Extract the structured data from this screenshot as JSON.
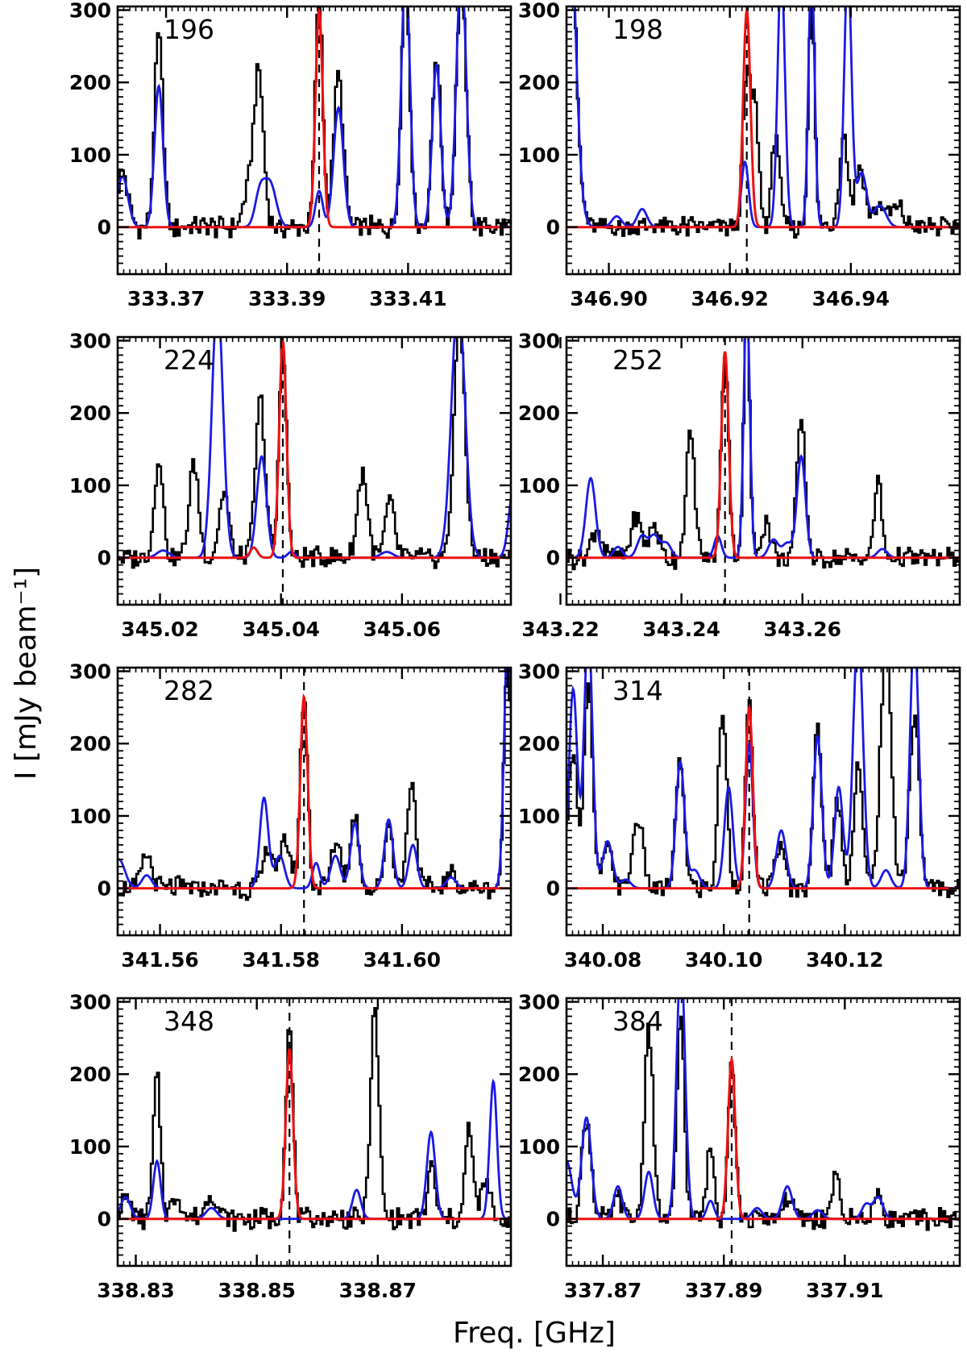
{
  "figure": {
    "xlabel": "Freq. [GHz]",
    "ylabel": "I [mJy beam⁻¹]",
    "colors": {
      "observed": "#000000",
      "model_line": "#ee1111",
      "model_total": "#1a1ae6",
      "baseline": "#ee1111"
    }
  },
  "chart_data": [
    {
      "type": "line",
      "label": "196",
      "xlim": [
        333.362,
        333.427
      ],
      "ylim": [
        -65,
        305
      ],
      "xticks": [
        333.37,
        333.39,
        333.41
      ],
      "xtick_labels": [
        "333.37",
        "333.39",
        "333.41"
      ],
      "yticks": [
        0,
        100,
        200,
        300
      ],
      "ytick_labels": [
        "0",
        "100",
        "200",
        "300"
      ],
      "marker_freq": 333.3953,
      "observed_peaks": [
        [
          333.3628,
          75,
          0.0009
        ],
        [
          333.3688,
          265,
          0.0007
        ],
        [
          333.3853,
          215,
          0.0008
        ],
        [
          333.3835,
          45,
          0.0008
        ],
        [
          333.3953,
          330,
          0.0006
        ],
        [
          333.3985,
          210,
          0.0008
        ],
        [
          333.4096,
          340,
          0.0007
        ],
        [
          333.4147,
          240,
          0.0007
        ],
        [
          333.4188,
          340,
          0.0008
        ]
      ],
      "model_line_peaks": [
        [
          333.3953,
          300,
          0.0006
        ]
      ],
      "model_total_peaks": [
        [
          333.3628,
          70,
          0.0009
        ],
        [
          333.3688,
          195,
          0.0007
        ],
        [
          333.3855,
          45,
          0.0008
        ],
        [
          333.3872,
          60,
          0.001
        ],
        [
          333.3953,
          50,
          0.0006
        ],
        [
          333.3985,
          165,
          0.0008
        ],
        [
          333.4096,
          360,
          0.0007
        ],
        [
          333.4147,
          225,
          0.0007
        ],
        [
          333.4188,
          360,
          0.0008
        ]
      ]
    },
    {
      "type": "line",
      "label": "198",
      "xlim": [
        346.893,
        346.958
      ],
      "ylim": [
        -65,
        305
      ],
      "xticks": [
        346.9,
        346.92,
        346.94
      ],
      "xtick_labels": [
        "346.90",
        "346.92",
        "346.94"
      ],
      "yticks": [
        0,
        100,
        200,
        300
      ],
      "ytick_labels": [
        "0",
        "100",
        "200",
        "300"
      ],
      "marker_freq": 346.9228,
      "observed_peaks": [
        [
          346.893,
          600,
          0.0012
        ],
        [
          346.9228,
          210,
          0.0006
        ],
        [
          346.9242,
          160,
          0.0006
        ],
        [
          346.9276,
          135,
          0.0006
        ],
        [
          346.9335,
          330,
          0.0005
        ],
        [
          346.9388,
          130,
          0.0007
        ],
        [
          346.9415,
          85,
          0.0008
        ],
        [
          346.9448,
          30,
          0.001
        ],
        [
          346.9478,
          25,
          0.001
        ]
      ],
      "model_line_peaks": [
        [
          346.9228,
          300,
          0.0006
        ]
      ],
      "model_total_peaks": [
        [
          346.893,
          600,
          0.0012
        ],
        [
          346.9013,
          15,
          0.0008
        ],
        [
          346.9055,
          25,
          0.0008
        ],
        [
          346.9225,
          90,
          0.0006
        ],
        [
          346.9285,
          360,
          0.0006
        ],
        [
          346.9335,
          360,
          0.0005
        ],
        [
          346.9395,
          360,
          0.0006
        ],
        [
          346.9418,
          75,
          0.0008
        ],
        [
          346.9448,
          30,
          0.001
        ]
      ]
    },
    {
      "type": "line",
      "label": "224",
      "xlim": [
        345.013,
        345.078
      ],
      "ylim": [
        -65,
        305
      ],
      "xticks": [
        345.02,
        345.04,
        345.06
      ],
      "xtick_labels": [
        "345.02",
        "345.04",
        "345.06"
      ],
      "yticks": [
        0,
        100,
        200,
        300
      ],
      "ytick_labels": [
        "0",
        "100",
        "200",
        "300"
      ],
      "marker_freq": 345.0403,
      "observed_peaks": [
        [
          345.0198,
          140,
          0.0007
        ],
        [
          345.0256,
          130,
          0.0008
        ],
        [
          345.0306,
          90,
          0.0008
        ],
        [
          345.0366,
          220,
          0.0008
        ],
        [
          345.0403,
          300,
          0.0006
        ],
        [
          345.0535,
          120,
          0.0008
        ],
        [
          345.058,
          75,
          0.0008
        ],
        [
          345.0695,
          330,
          0.0009
        ]
      ],
      "model_line_peaks": [
        [
          345.0403,
          300,
          0.0006
        ],
        [
          345.0355,
          14,
          0.0006
        ]
      ],
      "model_total_peaks": [
        [
          345.0103,
          80,
          0.001
        ],
        [
          345.0205,
          10,
          0.001
        ],
        [
          345.0295,
          360,
          0.0009
        ],
        [
          345.0368,
          140,
          0.0008
        ],
        [
          345.0417,
          8,
          0.0006
        ],
        [
          345.0575,
          8,
          0.001
        ],
        [
          345.0693,
          360,
          0.0011
        ],
        [
          345.0785,
          100,
          0.0008
        ]
      ]
    },
    {
      "type": "line",
      "label": "252",
      "xlim": [
        343.221,
        343.286
      ],
      "ylim": [
        -65,
        305
      ],
      "xticks": [
        343.22,
        343.24,
        343.26
      ],
      "xtick_labels": [
        "343.22",
        "343.24",
        "343.26"
      ],
      "yticks": [
        0,
        100,
        200,
        300
      ],
      "ytick_labels": [
        "0",
        "100",
        "200",
        "300"
      ],
      "marker_freq": 343.2472,
      "observed_peaks": [
        [
          343.226,
          40,
          0.0008
        ],
        [
          343.2325,
          60,
          0.0008
        ],
        [
          343.2355,
          45,
          0.0008
        ],
        [
          343.2415,
          170,
          0.0007
        ],
        [
          343.2472,
          285,
          0.0006
        ],
        [
          343.2508,
          330,
          0.0005
        ],
        [
          343.254,
          50,
          0.0008
        ],
        [
          343.2598,
          190,
          0.0007
        ],
        [
          343.2725,
          110,
          0.0006
        ]
      ],
      "model_line_peaks": [
        [
          343.2472,
          285,
          0.0006
        ]
      ],
      "model_total_peaks": [
        [
          343.225,
          110,
          0.0008
        ],
        [
          343.2295,
          15,
          0.0007
        ],
        [
          343.2335,
          30,
          0.0008
        ],
        [
          343.2355,
          30,
          0.0008
        ],
        [
          343.2375,
          20,
          0.0008
        ],
        [
          343.246,
          30,
          0.0006
        ],
        [
          343.2508,
          360,
          0.0005
        ],
        [
          343.2552,
          25,
          0.0008
        ],
        [
          343.2575,
          20,
          0.0008
        ],
        [
          343.2598,
          140,
          0.0007
        ],
        [
          343.2732,
          12,
          0.0008
        ]
      ]
    },
    {
      "type": "line",
      "label": "282",
      "xlim": [
        341.553,
        341.618
      ],
      "ylim": [
        -65,
        305
      ],
      "xticks": [
        341.56,
        341.58,
        341.6
      ],
      "xtick_labels": [
        "341.56",
        "341.58",
        "341.60"
      ],
      "yticks": [
        0,
        100,
        200,
        300
      ],
      "ytick_labels": [
        "0",
        "100",
        "200",
        "300"
      ],
      "marker_freq": 341.5838,
      "observed_peaks": [
        [
          341.5578,
          45,
          0.0008
        ],
        [
          341.578,
          60,
          0.0008
        ],
        [
          341.5808,
          65,
          0.0008
        ],
        [
          341.5838,
          265,
          0.0006
        ],
        [
          341.5892,
          65,
          0.0008
        ],
        [
          341.5922,
          100,
          0.0007
        ],
        [
          341.5978,
          90,
          0.0007
        ],
        [
          341.6016,
          155,
          0.0007
        ],
        [
          341.6081,
          20,
          0.0008
        ],
        [
          341.6175,
          320,
          0.0006
        ]
      ],
      "model_line_peaks": [
        [
          341.5838,
          265,
          0.0006
        ]
      ],
      "model_total_peaks": [
        [
          341.5532,
          40,
          0.001
        ],
        [
          341.5578,
          18,
          0.0008
        ],
        [
          341.5772,
          125,
          0.0007
        ],
        [
          341.5798,
          45,
          0.0008
        ],
        [
          341.5858,
          35,
          0.0006
        ],
        [
          341.589,
          45,
          0.0008
        ],
        [
          341.5922,
          90,
          0.0007
        ],
        [
          341.5978,
          95,
          0.0007
        ],
        [
          341.6018,
          60,
          0.0007
        ],
        [
          341.6081,
          15,
          0.0008
        ],
        [
          341.6175,
          360,
          0.0006
        ]
      ]
    },
    {
      "type": "line",
      "label": "314",
      "xlim": [
        340.074,
        340.139
      ],
      "ylim": [
        -65,
        305
      ],
      "xticks": [
        340.08,
        340.1,
        340.12
      ],
      "xtick_labels": [
        "340.08",
        "340.10",
        "340.12"
      ],
      "yticks": [
        0,
        100,
        200,
        300
      ],
      "ytick_labels": [
        "0",
        "100",
        "200",
        "300"
      ],
      "marker_freq": 340.1042,
      "observed_peaks": [
        [
          340.0751,
          200,
          0.0007
        ],
        [
          340.0776,
          280,
          0.0007
        ],
        [
          340.0808,
          55,
          0.0008
        ],
        [
          340.0858,
          100,
          0.0008
        ],
        [
          340.0928,
          175,
          0.0007
        ],
        [
          340.0998,
          245,
          0.0007
        ],
        [
          340.1042,
          250,
          0.0006
        ],
        [
          340.1092,
          60,
          0.0008
        ],
        [
          340.1155,
          220,
          0.0007
        ],
        [
          340.1188,
          120,
          0.0007
        ],
        [
          340.1222,
          175,
          0.0007
        ],
        [
          340.1268,
          330,
          0.0009
        ],
        [
          340.1315,
          240,
          0.0008
        ]
      ],
      "model_line_peaks": [
        [
          340.1042,
          250,
          0.0006
        ]
      ],
      "model_total_peaks": [
        [
          340.0751,
          275,
          0.0007
        ],
        [
          340.0776,
          360,
          0.0007
        ],
        [
          340.0808,
          65,
          0.0008
        ],
        [
          340.0838,
          12,
          0.0008
        ],
        [
          340.0928,
          175,
          0.0007
        ],
        [
          340.0952,
          25,
          0.0008
        ],
        [
          340.1008,
          140,
          0.0007
        ],
        [
          340.1042,
          200,
          0.0006
        ],
        [
          340.1095,
          80,
          0.0008
        ],
        [
          340.1155,
          210,
          0.0007
        ],
        [
          340.119,
          140,
          0.0007
        ],
        [
          340.1222,
          360,
          0.0008
        ],
        [
          340.1268,
          25,
          0.0008
        ],
        [
          340.1315,
          360,
          0.0007
        ]
      ]
    },
    {
      "type": "line",
      "label": "348",
      "xlim": [
        338.827,
        338.892
      ],
      "ylim": [
        -65,
        305
      ],
      "xticks": [
        338.83,
        338.85,
        338.87
      ],
      "xtick_labels": [
        "338.83",
        "338.85",
        "338.87"
      ],
      "yticks": [
        0,
        100,
        200,
        300
      ],
      "ytick_labels": [
        "0",
        "100",
        "200",
        "300"
      ],
      "marker_freq": 338.8554,
      "observed_peaks": [
        [
          338.8283,
          30,
          0.0008
        ],
        [
          338.8335,
          195,
          0.0006
        ],
        [
          338.8368,
          35,
          0.0008
        ],
        [
          338.8425,
          35,
          0.0009
        ],
        [
          338.8554,
          265,
          0.0006
        ],
        [
          338.8695,
          285,
          0.0007
        ],
        [
          338.8789,
          75,
          0.0006
        ],
        [
          338.8851,
          130,
          0.0006
        ],
        [
          338.8878,
          50,
          0.0008
        ]
      ],
      "model_line_peaks": [
        [
          338.8554,
          235,
          0.0006
        ]
      ],
      "model_total_peaks": [
        [
          338.8283,
          30,
          0.0008
        ],
        [
          338.8335,
          80,
          0.0006
        ],
        [
          338.8425,
          15,
          0.0009
        ],
        [
          338.8665,
          40,
          0.0007
        ],
        [
          338.8788,
          120,
          0.0007
        ],
        [
          338.8891,
          190,
          0.0006
        ]
      ]
    },
    {
      "type": "line",
      "label": "384",
      "xlim": [
        337.864,
        337.929
      ],
      "ylim": [
        -65,
        305
      ],
      "xticks": [
        337.87,
        337.89,
        337.91
      ],
      "xtick_labels": [
        "337.87",
        "337.89",
        "337.91"
      ],
      "yticks": [
        0,
        100,
        200,
        300
      ],
      "ytick_labels": [
        "0",
        "100",
        "200",
        "300"
      ],
      "marker_freq": 337.8913,
      "observed_peaks": [
        [
          337.8673,
          135,
          0.0008
        ],
        [
          337.8725,
          30,
          0.0007
        ],
        [
          337.8776,
          265,
          0.0007
        ],
        [
          337.8829,
          285,
          0.0006
        ],
        [
          337.8878,
          100,
          0.0006
        ],
        [
          337.8913,
          220,
          0.0006
        ],
        [
          337.9005,
          30,
          0.0008
        ],
        [
          337.9085,
          60,
          0.0006
        ],
        [
          337.9155,
          30,
          0.0008
        ]
      ],
      "model_line_peaks": [
        [
          337.8913,
          220,
          0.0006
        ]
      ],
      "model_total_peaks": [
        [
          337.864,
          80,
          0.0009
        ],
        [
          337.8673,
          140,
          0.0008
        ],
        [
          337.8725,
          45,
          0.0007
        ],
        [
          337.8776,
          65,
          0.0007
        ],
        [
          337.8829,
          360,
          0.0007
        ],
        [
          337.8878,
          25,
          0.0006
        ],
        [
          337.8955,
          15,
          0.0008
        ],
        [
          337.9005,
          45,
          0.0008
        ],
        [
          337.9055,
          12,
          0.0008
        ],
        [
          337.9135,
          20,
          0.0007
        ],
        [
          337.9155,
          30,
          0.0008
        ]
      ]
    }
  ]
}
